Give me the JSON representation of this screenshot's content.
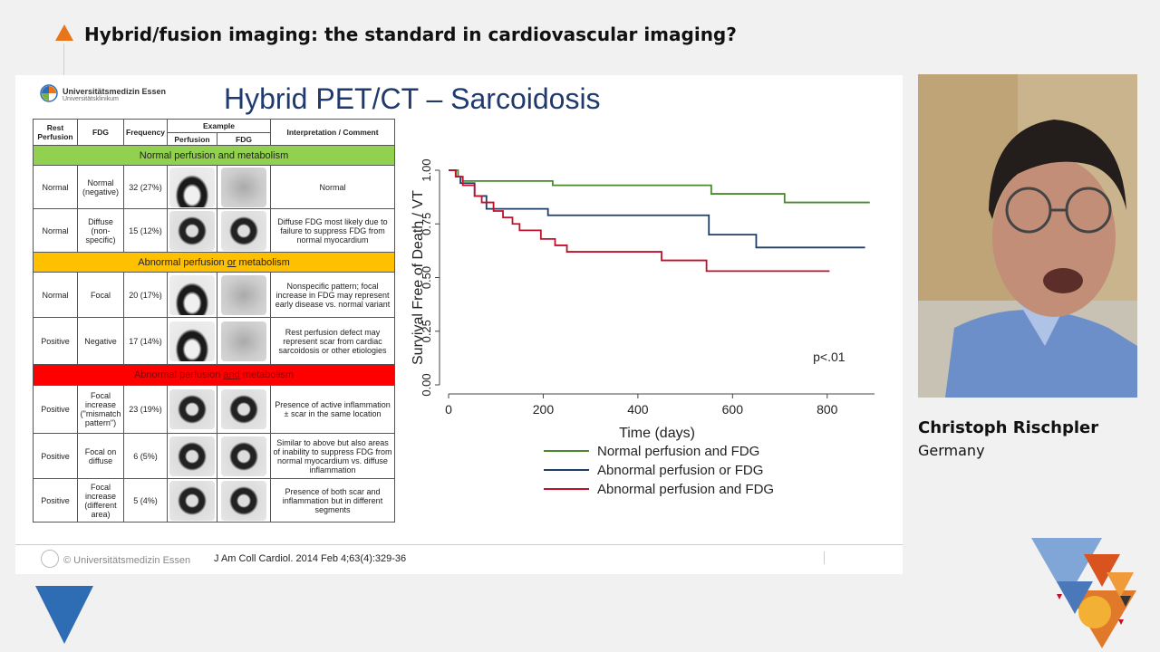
{
  "header": {
    "title": "Hybrid/fusion imaging: the standard in cardiovascular imaging?"
  },
  "slide": {
    "title": "Hybrid PET/CT – Sarcoidosis",
    "logo": {
      "name": "Universitätsmedizin Essen",
      "sub": "Universitätsklinikum"
    },
    "footer_left": "© Universitätsmedizin Essen",
    "footer_ref": "J Am Coll Cardiol. 2014 Feb 4;63(4):329-36",
    "table": {
      "headers": {
        "rest": "Rest Perfusion",
        "fdg": "FDG",
        "frequency": "Frequency",
        "example": "Example",
        "perfusion": "Perfusion",
        "fdg_sub": "FDG",
        "interp": "Interpretation / Comment"
      },
      "section_green": "Normal perfusion and metabolism",
      "section_yellow_pre": "Abnormal perfusion ",
      "section_yellow_or": "or",
      "section_yellow_post": " metabolism",
      "section_red_pre": "Abnormal perfusion ",
      "section_red_and": "and",
      "section_red_post": " metabolism",
      "rows": [
        {
          "rest": "Normal",
          "fdg": "Normal (negative)",
          "freq": "32 (27%)",
          "comment": "Normal"
        },
        {
          "rest": "Normal",
          "fdg": "Diffuse (non-specific)",
          "freq": "15 (12%)",
          "comment": "Diffuse FDG most likely due to failure to suppress FDG from normal myocardium"
        },
        {
          "rest": "Normal",
          "fdg": "Focal",
          "freq": "20 (17%)",
          "comment": "Nonspecific pattern; focal increase in FDG may represent early disease vs. normal variant"
        },
        {
          "rest": "Positive",
          "fdg": "Negative",
          "freq": "17 (14%)",
          "comment": "Rest perfusion defect may represent scar from cardiac sarcoidosis or other etiologies"
        },
        {
          "rest": "Positive",
          "fdg": "Focal increase (\"mismatch pattern\")",
          "freq": "23 (19%)",
          "comment": "Presence of active inflammation ± scar in the same location"
        },
        {
          "rest": "Positive",
          "fdg": "Focal on diffuse",
          "freq": "6 (5%)",
          "comment": "Similar to above but also areas of inability to suppress FDG from normal myocardium vs. diffuse inflammation"
        },
        {
          "rest": "Positive",
          "fdg": "Focal increase (different area)",
          "freq": "5 (4%)",
          "comment": "Presence of both scar and inflammation but in different segments"
        }
      ]
    }
  },
  "chart_data": {
    "type": "line",
    "title": "",
    "xlabel": "Time (days)",
    "ylabel": "Survival Free of Death / VT",
    "xlim": [
      0,
      900
    ],
    "ylim": [
      0,
      1
    ],
    "xticks": [
      0,
      200,
      400,
      600,
      800
    ],
    "yticks": [
      0.0,
      0.25,
      0.5,
      0.75,
      1.0
    ],
    "ytick_labels": [
      "0.00",
      "0.25",
      "0.50",
      "0.75",
      "1.00"
    ],
    "annotation": "p<.01",
    "legend_position": "bottom",
    "series": [
      {
        "name": "Normal perfusion and FDG",
        "color": "#4a8a2a",
        "points": [
          [
            0,
            1.0
          ],
          [
            20,
            1.0
          ],
          [
            20,
            0.97
          ],
          [
            30,
            0.97
          ],
          [
            30,
            0.95
          ],
          [
            220,
            0.95
          ],
          [
            220,
            0.93
          ],
          [
            555,
            0.93
          ],
          [
            555,
            0.89
          ],
          [
            710,
            0.89
          ],
          [
            710,
            0.85
          ],
          [
            890,
            0.85
          ]
        ]
      },
      {
        "name": "Abnormal perfusion or FDG",
        "color": "#1f3f66",
        "points": [
          [
            0,
            1.0
          ],
          [
            15,
            1.0
          ],
          [
            15,
            0.97
          ],
          [
            25,
            0.97
          ],
          [
            25,
            0.94
          ],
          [
            55,
            0.94
          ],
          [
            55,
            0.88
          ],
          [
            80,
            0.88
          ],
          [
            80,
            0.82
          ],
          [
            210,
            0.82
          ],
          [
            210,
            0.79
          ],
          [
            550,
            0.79
          ],
          [
            550,
            0.7
          ],
          [
            650,
            0.7
          ],
          [
            650,
            0.64
          ],
          [
            880,
            0.64
          ]
        ]
      },
      {
        "name": "Abnormal perfusion and FDG",
        "color": "#c0102a",
        "points": [
          [
            0,
            1.0
          ],
          [
            15,
            1.0
          ],
          [
            15,
            0.97
          ],
          [
            30,
            0.97
          ],
          [
            30,
            0.93
          ],
          [
            55,
            0.93
          ],
          [
            55,
            0.88
          ],
          [
            70,
            0.88
          ],
          [
            70,
            0.85
          ],
          [
            95,
            0.85
          ],
          [
            95,
            0.81
          ],
          [
            115,
            0.81
          ],
          [
            115,
            0.78
          ],
          [
            135,
            0.78
          ],
          [
            135,
            0.75
          ],
          [
            150,
            0.75
          ],
          [
            150,
            0.72
          ],
          [
            195,
            0.72
          ],
          [
            195,
            0.68
          ],
          [
            225,
            0.68
          ],
          [
            225,
            0.65
          ],
          [
            250,
            0.65
          ],
          [
            250,
            0.62
          ],
          [
            450,
            0.62
          ],
          [
            450,
            0.58
          ],
          [
            545,
            0.58
          ],
          [
            545,
            0.53
          ],
          [
            805,
            0.53
          ]
        ]
      }
    ]
  },
  "speaker": {
    "name": "Christoph Rischpler",
    "country": "Germany"
  },
  "colors": {
    "accent_orange": "#e8751a",
    "accent_blue": "#2e6db4"
  }
}
